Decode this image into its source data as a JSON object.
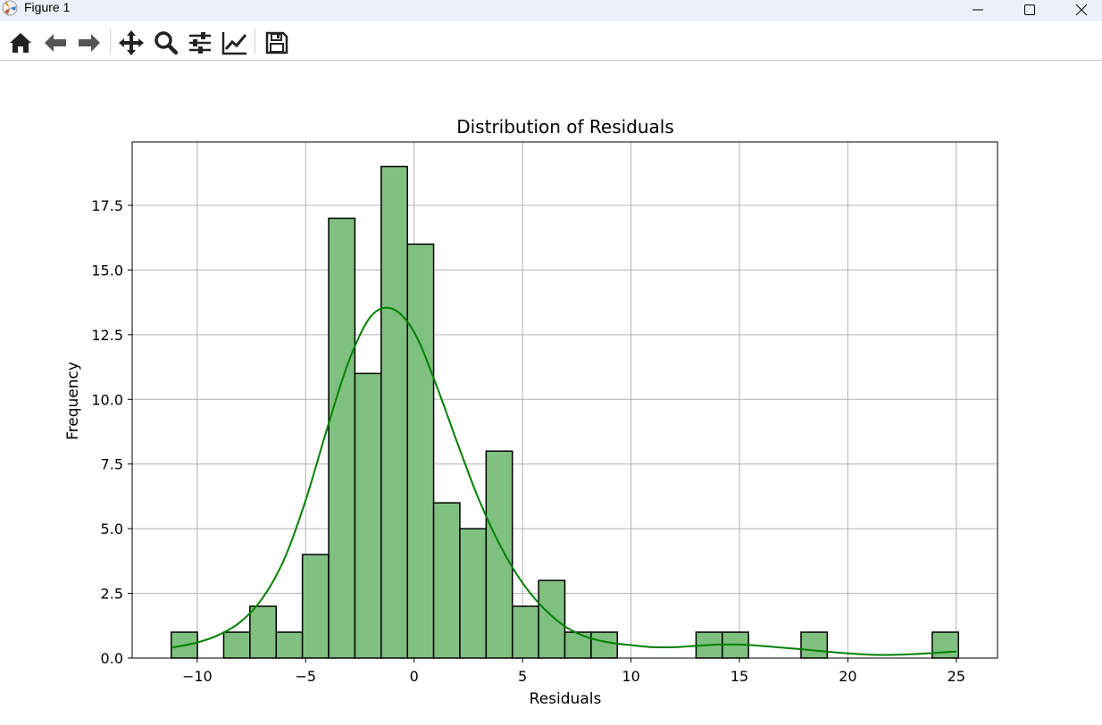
{
  "window": {
    "title": "Figure 1",
    "controls": [
      "minimize",
      "maximize",
      "close"
    ]
  },
  "toolbar": {
    "buttons": [
      {
        "name": "home-icon",
        "label": "Home"
      },
      {
        "name": "back-icon",
        "label": "Back"
      },
      {
        "name": "forward-icon",
        "label": "Forward"
      },
      {
        "name": "pan-icon",
        "label": "Pan"
      },
      {
        "name": "zoom-icon",
        "label": "Zoom"
      },
      {
        "name": "configure-subplots-icon",
        "label": "Subplots"
      },
      {
        "name": "edit-axis-icon",
        "label": "Customize"
      },
      {
        "name": "save-icon",
        "label": "Save"
      }
    ]
  },
  "chart_data": {
    "type": "bar",
    "title": "Distribution of Residuals",
    "xlabel": "Residuals",
    "ylabel": "Frequency",
    "xlim": [
      -13.0,
      26.9
    ],
    "ylim": [
      0,
      19.95
    ],
    "xticks": [
      -10,
      -5,
      0,
      5,
      10,
      15,
      20,
      25
    ],
    "xtick_labels": [
      "−10",
      "−5",
      "0",
      "5",
      "10",
      "15",
      "20",
      "25"
    ],
    "yticks": [
      0,
      2.5,
      5,
      7.5,
      10,
      12.5,
      15,
      17.5
    ],
    "ytick_labels": [
      "0.0",
      "2.5",
      "5.0",
      "7.5",
      "10.0",
      "12.5",
      "15.0",
      "17.5"
    ],
    "grid": true,
    "bin_start": -11.2,
    "bin_width": 1.21,
    "counts": [
      1,
      0,
      1,
      2,
      1,
      4,
      17,
      11,
      19,
      16,
      6,
      5,
      8,
      2,
      3,
      1,
      1,
      0,
      0,
      0,
      1,
      1,
      0,
      0,
      1,
      0,
      0,
      0,
      0,
      1
    ],
    "bar_color": "#80c080",
    "edge_color": "#000000",
    "kde": {
      "color": "#008000",
      "x": [
        -11.2,
        -10,
        -9,
        -8,
        -7,
        -6,
        -5,
        -4,
        -3,
        -2,
        -1,
        0,
        1,
        2,
        3,
        4,
        5,
        6,
        7,
        8,
        9,
        10,
        11,
        12,
        13,
        14,
        15,
        16,
        17,
        18,
        19,
        20,
        21,
        22,
        23,
        24,
        25
      ],
      "y": [
        0.4,
        0.6,
        0.9,
        1.4,
        2.3,
        3.8,
        6.1,
        8.9,
        11.5,
        13.2,
        13.5,
        12.6,
        10.6,
        8.3,
        6.1,
        4.3,
        2.9,
        1.9,
        1.2,
        0.8,
        0.6,
        0.5,
        0.42,
        0.42,
        0.47,
        0.52,
        0.52,
        0.47,
        0.4,
        0.33,
        0.25,
        0.18,
        0.13,
        0.12,
        0.15,
        0.2,
        0.25
      ]
    }
  }
}
